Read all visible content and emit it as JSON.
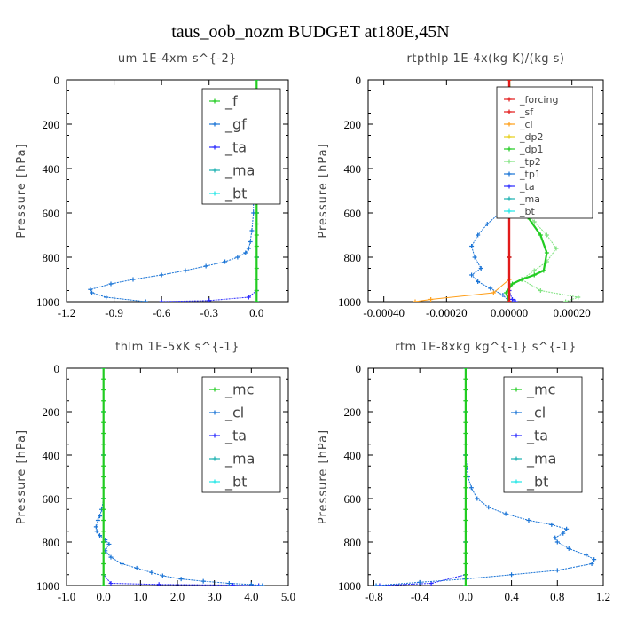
{
  "figure_title": "taus_oob_nozm  BUDGET at180E,45N",
  "colors": {
    "green": "#22cc22",
    "blue": "#1a74d6",
    "red": "#e21a1a",
    "orange": "#ff9f1a",
    "yellow": "#e6cf1a",
    "lightgreen": "#7ee27e",
    "purple": "#2a2aff",
    "teal": "#1ab0b0",
    "cyan": "#22e6e6",
    "darkblue": "#101080"
  },
  "chart_data": [
    {
      "type": "line",
      "title": "um   1E-4xm s^{-2}",
      "ylabel": "Pressure [hPa]",
      "xlim": [
        -1.2,
        0.2
      ],
      "ylim": [
        1000,
        0
      ],
      "xticks": [
        "-1.2",
        "-0.9",
        "-0.6",
        "-0.3",
        "0.0"
      ],
      "yticks": [
        "0",
        "200",
        "400",
        "600",
        "800",
        "1000"
      ],
      "legend": {
        "position": "top-right",
        "entries": [
          "_f",
          "_gf",
          "_ta",
          "_ma",
          "_bt"
        ]
      },
      "series": [
        {
          "name": "_f",
          "color": "green",
          "x": [
            0,
            0,
            0,
            0,
            0,
            0,
            0,
            0,
            0,
            0,
            0,
            0,
            0,
            0,
            0,
            0,
            0,
            0,
            0,
            0,
            0
          ],
          "y": [
            0,
            50,
            100,
            150,
            200,
            250,
            300,
            350,
            400,
            450,
            500,
            550,
            600,
            650,
            700,
            750,
            800,
            850,
            900,
            950,
            1000
          ]
        },
        {
          "name": "_gf",
          "color": "blue",
          "x": [
            -0.02,
            -0.02,
            -0.03,
            -0.04,
            -0.05,
            -0.07,
            -0.12,
            -0.2,
            -0.32,
            -0.45,
            -0.6,
            -0.78,
            -0.92,
            -1.05,
            -1.04,
            -0.95,
            -0.7
          ],
          "y": [
            500,
            600,
            680,
            730,
            760,
            780,
            800,
            820,
            840,
            860,
            880,
            900,
            920,
            945,
            960,
            980,
            1000
          ]
        },
        {
          "name": "_ta",
          "color": "purple",
          "x": [
            0,
            0,
            0,
            0,
            0,
            0,
            0,
            -0.05,
            -0.3,
            -0.6
          ],
          "y": [
            0,
            200,
            400,
            600,
            800,
            900,
            950,
            980,
            995,
            1000
          ]
        },
        {
          "name": "_ma",
          "color": "teal",
          "x": [
            0,
            0,
            0,
            0,
            0,
            0
          ],
          "y": [
            0,
            200,
            400,
            600,
            800,
            1000
          ]
        },
        {
          "name": "_bt",
          "color": "cyan",
          "x": [
            0,
            0,
            0,
            0,
            0,
            0
          ],
          "y": [
            0,
            200,
            400,
            600,
            800,
            1000
          ]
        }
      ]
    },
    {
      "type": "line",
      "title": "rtpthlp   1E-4x(kg K)/(kg s)",
      "ylabel": "Pressure [hPa]",
      "xlim": [
        -0.00045,
        0.0003
      ],
      "ylim": [
        1000,
        0
      ],
      "xticks": [
        "-0.00040",
        "-0.00020",
        "0.00000",
        "0.00020"
      ],
      "yticks": [
        "0",
        "200",
        "400",
        "600",
        "800",
        "1000"
      ],
      "legend": {
        "position": "top-right",
        "entries": [
          "_forcing",
          "_sf",
          "_cl",
          "_dp2",
          "_dp1",
          "_tp2",
          "_tp1",
          "_ta",
          "_ma",
          "_bt"
        ]
      },
      "series": [
        {
          "name": "_forcing",
          "color": "red",
          "x": [
            0,
            0,
            0,
            0,
            0,
            0
          ],
          "y": [
            0,
            200,
            400,
            600,
            800,
            1000
          ]
        },
        {
          "name": "_sf",
          "color": "red",
          "x": [
            0,
            0,
            0,
            0,
            0,
            0
          ],
          "y": [
            0,
            200,
            400,
            600,
            800,
            1000
          ]
        },
        {
          "name": "_cl",
          "color": "orange",
          "x": [
            0,
            0,
            0,
            -5e-05,
            -0.00025,
            -0.0003
          ],
          "y": [
            0,
            500,
            900,
            960,
            990,
            1000
          ]
        },
        {
          "name": "_dp2",
          "color": "yellow",
          "x": [
            0,
            0,
            0,
            0
          ],
          "y": [
            0,
            400,
            800,
            1000
          ]
        },
        {
          "name": "_dp1",
          "color": "green",
          "x": [
            0,
            1e-05,
            3e-05,
            6e-05,
            0.0001,
            0.00012,
            0.00011,
            8e-05,
            4e-05,
            1e-05,
            -1e-05,
            0
          ],
          "y": [
            0,
            450,
            550,
            620,
            700,
            780,
            860,
            880,
            900,
            920,
            960,
            1000
          ]
        },
        {
          "name": "_tp2",
          "color": "lightgreen",
          "x": [
            0,
            1e-05,
            4e-05,
            8e-05,
            0.00012,
            0.00015,
            0.00012,
            8e-05,
            4e-05,
            0.0001,
            0.00022,
            0.00018
          ],
          "y": [
            0,
            500,
            580,
            640,
            700,
            760,
            820,
            860,
            900,
            950,
            980,
            1000
          ]
        },
        {
          "name": "_tp1",
          "color": "blue",
          "x": [
            0,
            -1e-05,
            -3e-05,
            -7e-05,
            -0.0001,
            -0.00012,
            -0.00011,
            -9e-05,
            -0.00012,
            -0.0001,
            -6e-05,
            -2e-05,
            0
          ],
          "y": [
            0,
            500,
            600,
            650,
            700,
            750,
            800,
            850,
            880,
            910,
            940,
            970,
            1000
          ]
        },
        {
          "name": "_ta",
          "color": "purple",
          "x": [
            0,
            0,
            0,
            0,
            1e-05,
            2e-05
          ],
          "y": [
            0,
            400,
            800,
            950,
            990,
            1000
          ]
        },
        {
          "name": "_ma",
          "color": "teal",
          "x": [
            0,
            0,
            0,
            0,
            0,
            0
          ],
          "y": [
            0,
            200,
            400,
            600,
            800,
            1000
          ]
        },
        {
          "name": "_bt",
          "color": "cyan",
          "x": [
            0,
            0,
            0,
            0,
            0,
            0
          ],
          "y": [
            0,
            200,
            400,
            600,
            800,
            1000
          ]
        }
      ]
    },
    {
      "type": "line",
      "title": "thlm   1E-5xK s^{-1}",
      "ylabel": "Pressure [hPa]",
      "xlim": [
        -1.0,
        5.0
      ],
      "ylim": [
        1000,
        0
      ],
      "xticks": [
        "-1.0",
        "0.0",
        "1.0",
        "2.0",
        "3.0",
        "4.0",
        "5.0"
      ],
      "yticks": [
        "0",
        "200",
        "400",
        "600",
        "800",
        "1000"
      ],
      "legend": {
        "position": "top-right",
        "entries": [
          "_mc",
          "_cl",
          "_ta",
          "_ma",
          "_bt"
        ]
      },
      "series": [
        {
          "name": "_mc",
          "color": "green",
          "x": [
            0,
            0,
            0,
            0,
            0,
            0,
            0,
            0,
            0,
            0,
            0,
            0,
            0,
            0,
            0,
            0,
            0,
            0,
            0,
            0,
            0
          ],
          "y": [
            0,
            50,
            100,
            150,
            200,
            250,
            300,
            350,
            400,
            450,
            500,
            550,
            600,
            650,
            700,
            750,
            800,
            850,
            900,
            950,
            1000
          ]
        },
        {
          "name": "_cl",
          "color": "blue",
          "x": [
            0,
            -0.05,
            -0.1,
            -0.15,
            -0.2,
            -0.18,
            -0.1,
            0.05,
            0.15,
            0.05,
            0.2,
            0.5,
            0.9,
            1.3,
            1.6,
            2.1,
            2.7,
            3.4,
            4.0,
            4.3
          ],
          "y": [
            600,
            650,
            680,
            700,
            730,
            750,
            770,
            790,
            810,
            840,
            870,
            900,
            920,
            940,
            955,
            970,
            980,
            990,
            995,
            1000
          ]
        },
        {
          "name": "_ta",
          "color": "purple",
          "x": [
            0,
            0,
            0,
            0,
            0.2,
            1.5,
            3.5,
            4.2
          ],
          "y": [
            0,
            400,
            800,
            950,
            990,
            995,
            998,
            1000
          ]
        },
        {
          "name": "_ma",
          "color": "teal",
          "x": [
            0,
            0,
            0,
            0,
            0,
            0
          ],
          "y": [
            0,
            200,
            400,
            600,
            800,
            1000
          ]
        },
        {
          "name": "_bt",
          "color": "cyan",
          "x": [
            0,
            0,
            0,
            0,
            0,
            0
          ],
          "y": [
            0,
            200,
            400,
            600,
            800,
            1000
          ]
        }
      ]
    },
    {
      "type": "line",
      "title": "rtm   1E-8xkg kg^{-1} s^{-1}",
      "ylabel": "Pressure [hPa]",
      "xlim": [
        -0.85,
        1.2
      ],
      "ylim": [
        1000,
        0
      ],
      "xticks": [
        "-0.8",
        "-0.4",
        "0.0",
        "0.4",
        "0.8",
        "1.2"
      ],
      "yticks": [
        "0",
        "200",
        "400",
        "600",
        "800",
        "1000"
      ],
      "legend": {
        "position": "top-right",
        "entries": [
          "_mc",
          "_cl",
          "_ta",
          "_ma",
          "_bt"
        ]
      },
      "series": [
        {
          "name": "_mc",
          "color": "green",
          "x": [
            0,
            0,
            0,
            0,
            0,
            0,
            0,
            0,
            0,
            0,
            0,
            0,
            0,
            0,
            0,
            0,
            0,
            0,
            0,
            0,
            0
          ],
          "y": [
            0,
            50,
            100,
            150,
            200,
            250,
            300,
            350,
            400,
            450,
            500,
            550,
            600,
            650,
            700,
            750,
            800,
            850,
            900,
            950,
            1000
          ]
        },
        {
          "name": "_cl",
          "color": "blue",
          "x": [
            0,
            0.02,
            0.05,
            0.1,
            0.2,
            0.35,
            0.55,
            0.75,
            0.88,
            0.85,
            0.78,
            0.8,
            0.9,
            1.05,
            1.12,
            1.1,
            0.8,
            0.4,
            0,
            -0.4,
            -0.78
          ],
          "y": [
            400,
            500,
            550,
            600,
            640,
            670,
            700,
            720,
            740,
            760,
            780,
            800,
            830,
            860,
            880,
            900,
            930,
            950,
            970,
            985,
            1000
          ]
        },
        {
          "name": "_ta",
          "color": "purple",
          "x": [
            0,
            0,
            0,
            0,
            -0.3,
            -0.75
          ],
          "y": [
            0,
            400,
            800,
            950,
            990,
            1000
          ]
        },
        {
          "name": "_ma",
          "color": "teal",
          "x": [
            0,
            0,
            0,
            0,
            0,
            0
          ],
          "y": [
            0,
            200,
            400,
            600,
            800,
            1000
          ]
        },
        {
          "name": "_bt",
          "color": "cyan",
          "x": [
            0,
            0,
            0,
            0,
            0,
            0
          ],
          "y": [
            0,
            200,
            400,
            600,
            800,
            1000
          ]
        }
      ]
    }
  ]
}
